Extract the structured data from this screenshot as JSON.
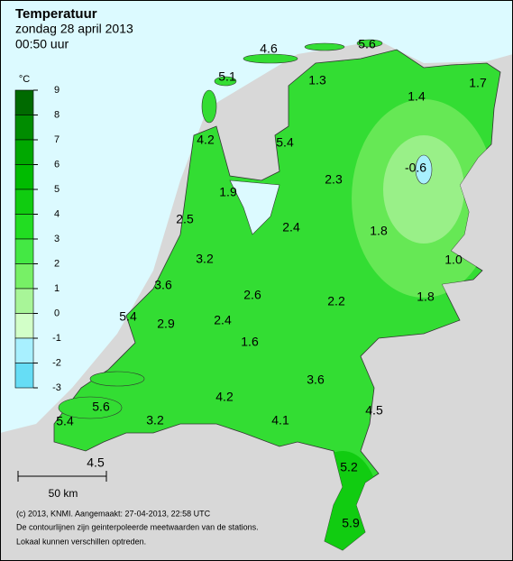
{
  "map": {
    "title": "Temperatuur",
    "subtitle": "zondag 28 april 2013",
    "time": "00:50 uur",
    "legend": {
      "unit": "°C",
      "ticks": [
        9,
        8,
        7,
        6,
        5,
        4,
        3,
        2,
        1,
        0,
        -1,
        -2,
        -3
      ],
      "colors": [
        "#006a00",
        "#008c00",
        "#00a800",
        "#00bb00",
        "#10cc10",
        "#22dd22",
        "#44e844",
        "#77f066",
        "#a8f598",
        "#d2ffc8",
        "#a8f0ff",
        "#66ddf5",
        "#22c8ea"
      ]
    },
    "stations": [
      4.6,
      5.6,
      5.1,
      1.3,
      1.4,
      1.7,
      4.2,
      5.4,
      -0.6,
      2.3,
      1.9,
      2.5,
      2.4,
      {
        "value": 1.8,
        "label": "1.8"
      },
      {
        "value": 1,
        "label": "1.0"
      },
      3.2,
      3.6,
      2.6,
      2.2,
      {
        "value": 1.8,
        "label": "1.8"
      },
      5.4,
      2.9,
      2.4,
      1.6,
      3.6,
      4.2,
      5.6,
      4.5,
      3.2,
      4.1,
      5.4,
      4.5,
      5.2,
      5.9
    ],
    "scale": "50 km",
    "footer": [
      "(c) 2013, KNMI. Aangemaakt: 27-04-2013, 22:58 UTC",
      "De contourlijnen zijn geinterpoleerde meetwaarden van de stations.",
      "Lokaal kunnen verschillen optreden."
    ]
  }
}
